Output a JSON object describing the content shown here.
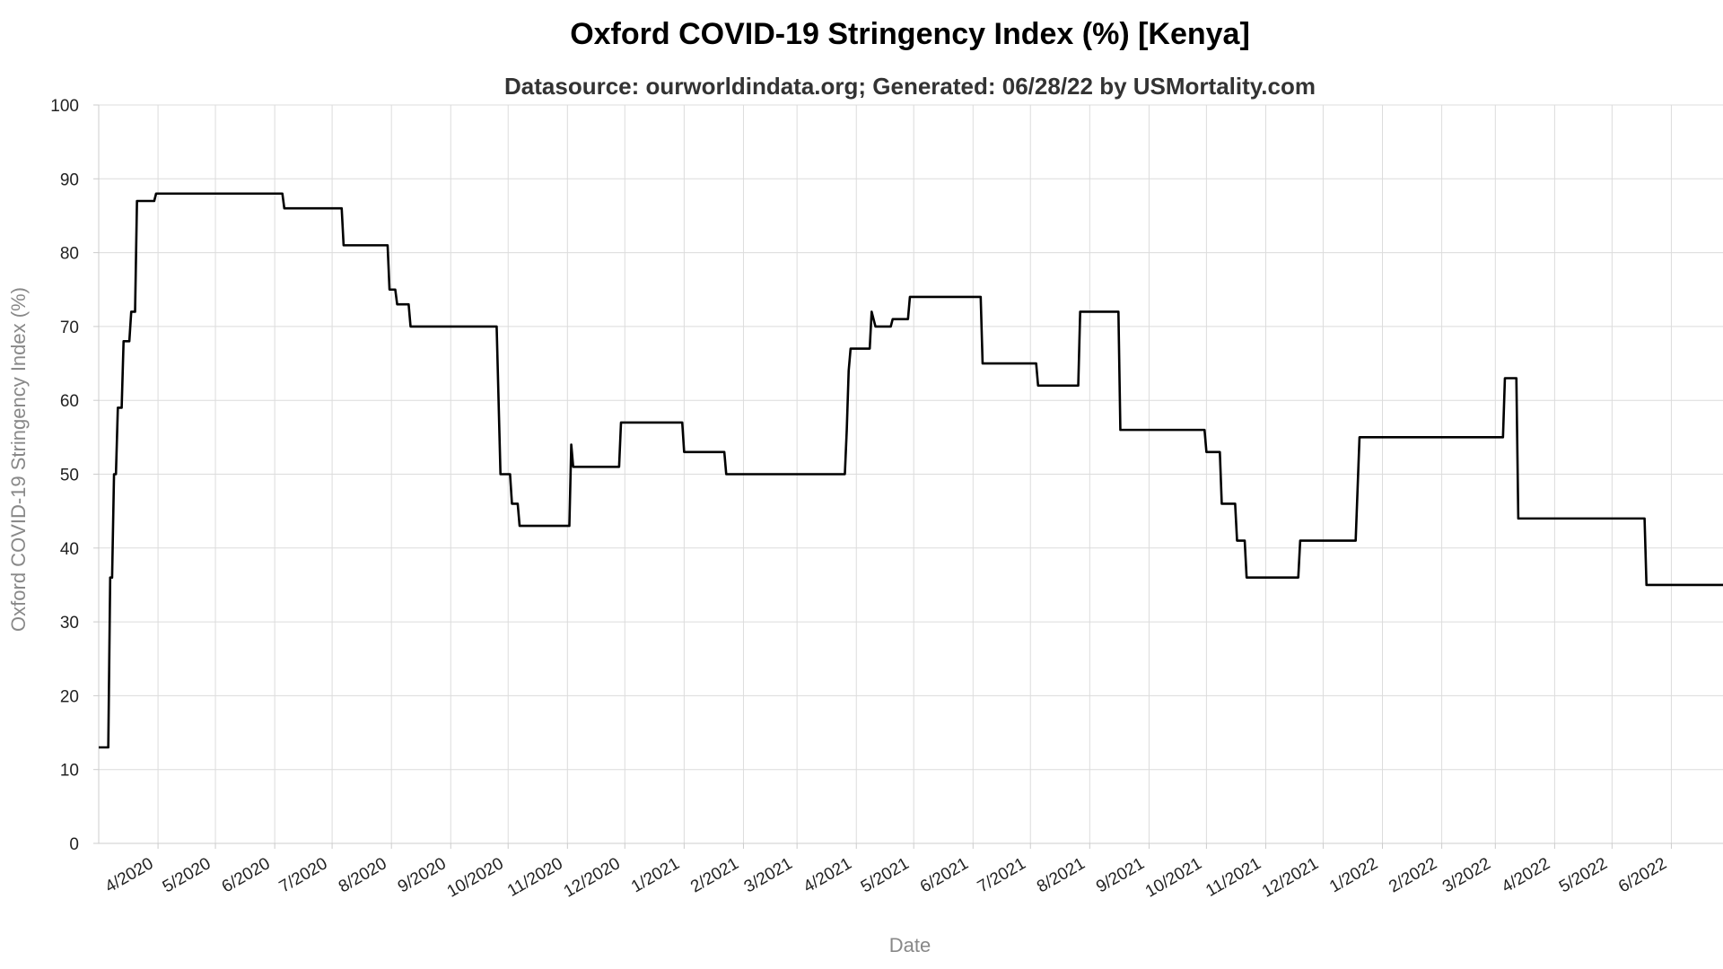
{
  "chart_data": {
    "type": "line",
    "title": "Oxford COVID-19 Stringency Index (%) [Kenya]",
    "subtitle": "Datasource: ourworldindata.org; Generated: 06/28/22 by USMortality.com",
    "xlabel": "Date",
    "ylabel": "Oxford COVID-19 Stringency Index (%)",
    "x_range": [
      "2020-03-01",
      "2022-06-28"
    ],
    "ylim": [
      0,
      100
    ],
    "y_ticks": [
      0,
      10,
      20,
      30,
      40,
      50,
      60,
      70,
      80,
      90,
      100
    ],
    "x_ticks": [
      {
        "date": "2020-04-01",
        "label": "4/2020"
      },
      {
        "date": "2020-05-01",
        "label": "5/2020"
      },
      {
        "date": "2020-06-01",
        "label": "6/2020"
      },
      {
        "date": "2020-07-01",
        "label": "7/2020"
      },
      {
        "date": "2020-08-01",
        "label": "8/2020"
      },
      {
        "date": "2020-09-01",
        "label": "9/2020"
      },
      {
        "date": "2020-10-01",
        "label": "10/2020"
      },
      {
        "date": "2020-11-01",
        "label": "11/2020"
      },
      {
        "date": "2020-12-01",
        "label": "12/2020"
      },
      {
        "date": "2021-01-01",
        "label": "1/2021"
      },
      {
        "date": "2021-02-01",
        "label": "2/2021"
      },
      {
        "date": "2021-03-01",
        "label": "3/2021"
      },
      {
        "date": "2021-04-01",
        "label": "4/2021"
      },
      {
        "date": "2021-05-01",
        "label": "5/2021"
      },
      {
        "date": "2021-06-01",
        "label": "6/2021"
      },
      {
        "date": "2021-07-01",
        "label": "7/2021"
      },
      {
        "date": "2021-08-01",
        "label": "8/2021"
      },
      {
        "date": "2021-09-01",
        "label": "9/2021"
      },
      {
        "date": "2021-10-01",
        "label": "10/2021"
      },
      {
        "date": "2021-11-01",
        "label": "11/2021"
      },
      {
        "date": "2021-12-01",
        "label": "12/2021"
      },
      {
        "date": "2022-01-01",
        "label": "1/2022"
      },
      {
        "date": "2022-02-01",
        "label": "2/2022"
      },
      {
        "date": "2022-03-01",
        "label": "3/2022"
      },
      {
        "date": "2022-04-01",
        "label": "4/2022"
      },
      {
        "date": "2022-05-01",
        "label": "5/2022"
      },
      {
        "date": "2022-06-01",
        "label": "6/2022"
      }
    ],
    "grid": true,
    "legend": "none",
    "series": [
      {
        "color": "#000000",
        "points": [
          [
            "2020-03-01",
            13
          ],
          [
            "2020-03-06",
            13
          ],
          [
            "2020-03-07",
            36
          ],
          [
            "2020-03-08",
            36
          ],
          [
            "2020-03-09",
            50
          ],
          [
            "2020-03-10",
            50
          ],
          [
            "2020-03-11",
            59
          ],
          [
            "2020-03-13",
            59
          ],
          [
            "2020-03-14",
            68
          ],
          [
            "2020-03-17",
            68
          ],
          [
            "2020-03-18",
            72
          ],
          [
            "2020-03-20",
            72
          ],
          [
            "2020-03-21",
            87
          ],
          [
            "2020-03-30",
            87
          ],
          [
            "2020-03-31",
            88
          ],
          [
            "2020-06-05",
            88
          ],
          [
            "2020-06-06",
            86
          ],
          [
            "2020-07-06",
            86
          ],
          [
            "2020-07-07",
            81
          ],
          [
            "2020-07-30",
            81
          ],
          [
            "2020-07-31",
            75
          ],
          [
            "2020-08-03",
            75
          ],
          [
            "2020-08-04",
            73
          ],
          [
            "2020-08-10",
            73
          ],
          [
            "2020-08-11",
            70
          ],
          [
            "2020-09-25",
            70
          ],
          [
            "2020-09-27",
            50
          ],
          [
            "2020-10-02",
            50
          ],
          [
            "2020-10-03",
            46
          ],
          [
            "2020-10-06",
            46
          ],
          [
            "2020-10-07",
            43
          ],
          [
            "2020-11-02",
            43
          ],
          [
            "2020-11-03",
            54
          ],
          [
            "2020-11-04",
            51
          ],
          [
            "2020-11-28",
            51
          ],
          [
            "2020-11-29",
            57
          ],
          [
            "2020-12-31",
            57
          ],
          [
            "2021-01-01",
            53
          ],
          [
            "2021-01-22",
            53
          ],
          [
            "2021-01-23",
            50
          ],
          [
            "2021-03-26",
            50
          ],
          [
            "2021-03-27",
            56
          ],
          [
            "2021-03-28",
            64
          ],
          [
            "2021-03-29",
            67
          ],
          [
            "2021-04-08",
            67
          ],
          [
            "2021-04-09",
            72
          ],
          [
            "2021-04-11",
            70
          ],
          [
            "2021-04-19",
            70
          ],
          [
            "2021-04-20",
            71
          ],
          [
            "2021-04-28",
            71
          ],
          [
            "2021-04-29",
            74
          ],
          [
            "2021-06-05",
            74
          ],
          [
            "2021-06-06",
            65
          ],
          [
            "2021-07-04",
            65
          ],
          [
            "2021-07-05",
            62
          ],
          [
            "2021-07-26",
            62
          ],
          [
            "2021-07-27",
            72
          ],
          [
            "2021-08-16",
            72
          ],
          [
            "2021-08-17",
            56
          ],
          [
            "2021-09-30",
            56
          ],
          [
            "2021-10-01",
            53
          ],
          [
            "2021-10-08",
            53
          ],
          [
            "2021-10-09",
            46
          ],
          [
            "2021-10-16",
            46
          ],
          [
            "2021-10-17",
            41
          ],
          [
            "2021-10-21",
            41
          ],
          [
            "2021-10-22",
            36
          ],
          [
            "2021-11-18",
            36
          ],
          [
            "2021-11-19",
            41
          ],
          [
            "2021-12-18",
            41
          ],
          [
            "2021-12-20",
            55
          ],
          [
            "2022-03-05",
            55
          ],
          [
            "2022-03-06",
            63
          ],
          [
            "2022-03-12",
            63
          ],
          [
            "2022-03-13",
            44
          ],
          [
            "2022-05-18",
            44
          ],
          [
            "2022-05-19",
            35
          ],
          [
            "2022-06-28",
            35
          ]
        ]
      }
    ]
  }
}
